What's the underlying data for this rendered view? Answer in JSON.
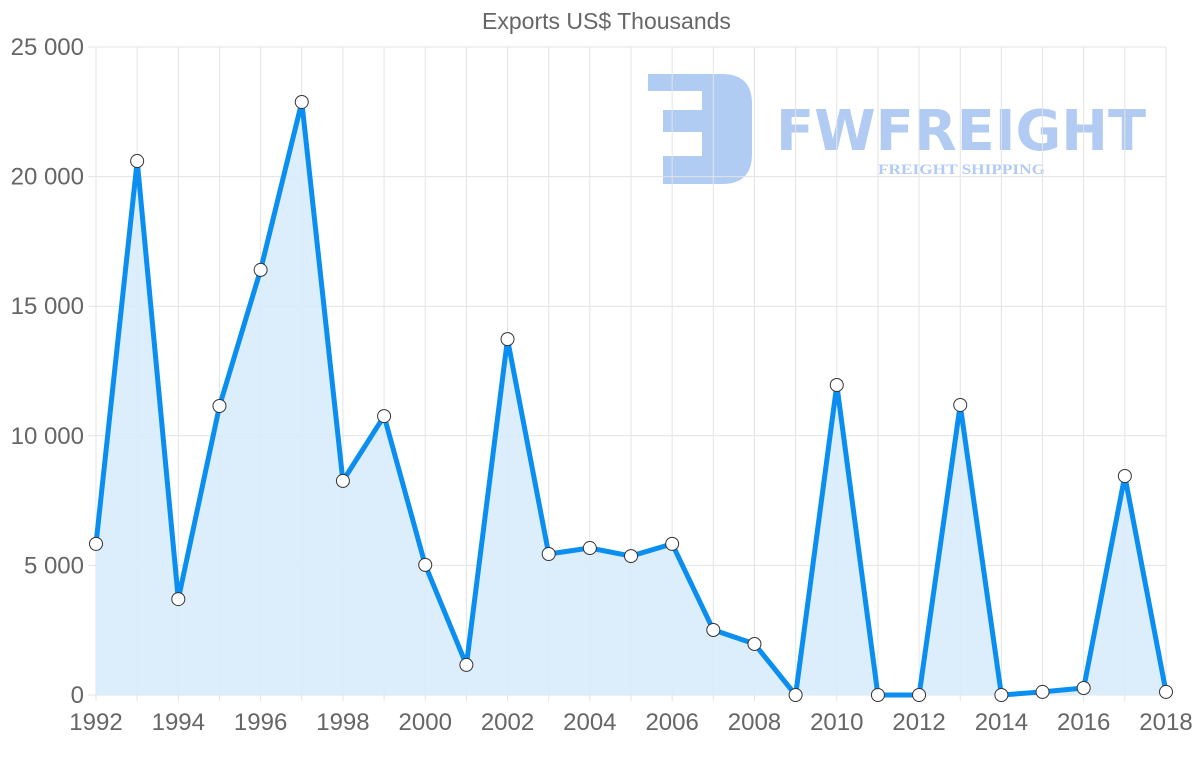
{
  "chart_data": {
    "type": "area",
    "title": "Exports US$ Thousands",
    "xlabel": "",
    "ylabel": "",
    "x": [
      1992,
      1993,
      1994,
      1995,
      1996,
      1997,
      1998,
      1999,
      2000,
      2001,
      2002,
      2003,
      2004,
      2005,
      2006,
      2007,
      2008,
      2009,
      2010,
      2011,
      2012,
      2013,
      2014,
      2015,
      2016,
      2017,
      2018
    ],
    "series": [
      {
        "name": "Exports US$ Thousands",
        "color": "#0a8ff0",
        "fill": "#d8ebfb",
        "values": [
          5830,
          20600,
          3700,
          11150,
          16400,
          22880,
          8260,
          10760,
          5020,
          1160,
          13730,
          5440,
          5670,
          5360,
          5830,
          2510,
          1970,
          0,
          11960,
          0,
          0,
          11190,
          0,
          120,
          270,
          8450,
          120
        ]
      }
    ],
    "ylim": [
      0,
      25000
    ],
    "y_ticks": [
      0,
      5000,
      10000,
      15000,
      20000,
      25000
    ],
    "y_tick_labels": [
      "0",
      "5 000",
      "10 000",
      "15 000",
      "20 000",
      "25 000"
    ],
    "x_tick_labels": [
      "1992",
      "1994",
      "1996",
      "1998",
      "2000",
      "2002",
      "2004",
      "2006",
      "2008",
      "2010",
      "2012",
      "2014",
      "2016",
      "2018"
    ],
    "grid": true,
    "legend": "none"
  },
  "watermark": {
    "brand": "FWFREIGHT",
    "tagline": "FREIGHT SHIPPING",
    "color": "#a9c6f2"
  }
}
